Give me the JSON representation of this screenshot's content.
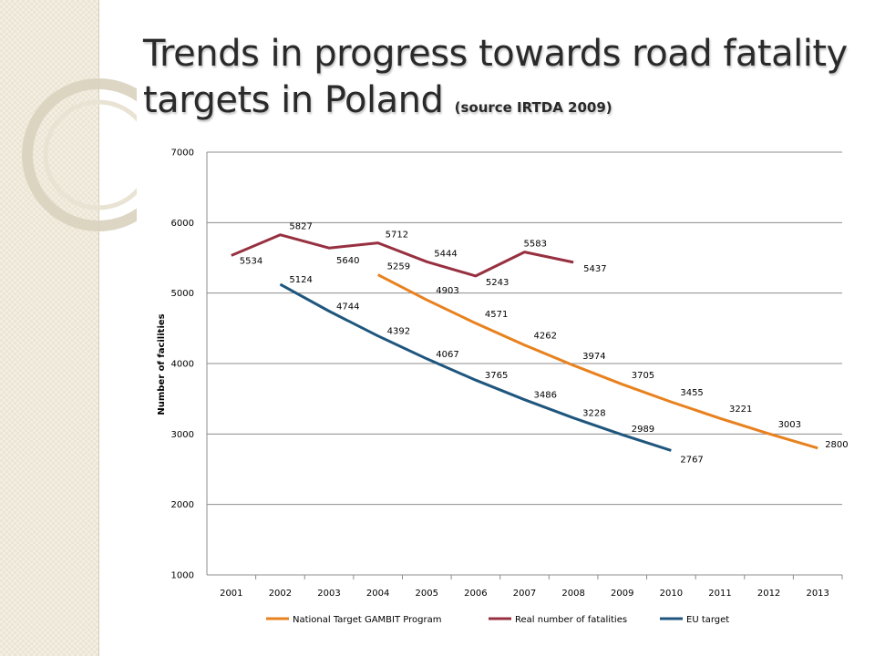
{
  "slide": {
    "title": "Trends in progress towards road fatality targets in Poland",
    "source": "(source IRTDA 2009)"
  },
  "colors": {
    "national": "#e8811e",
    "real": "#973040",
    "eu": "#1f567e",
    "grid": "#8c8c8c"
  },
  "chart_data": {
    "type": "line",
    "title": "",
    "xlabel": "",
    "ylabel": "Number of facilities",
    "categories": [
      "2001",
      "2002",
      "2003",
      "2004",
      "2005",
      "2006",
      "2007",
      "2008",
      "2009",
      "2010",
      "2011",
      "2012",
      "2013"
    ],
    "y_ticks": [
      "1000",
      "2000",
      "3000",
      "4000",
      "5000",
      "6000",
      "7000"
    ],
    "ylim": [
      1000,
      7000
    ],
    "grid": true,
    "legend_position": "bottom",
    "series": [
      {
        "name": "National Target GAMBIT Program",
        "color": "#e8811e",
        "x": [
          "2004",
          "2005",
          "2006",
          "2007",
          "2008",
          "2009",
          "2010",
          "2011",
          "2012",
          "2013"
        ],
        "values": [
          5259,
          4903,
          4571,
          4262,
          3974,
          3705,
          3455,
          3221,
          3003,
          2800
        ],
        "labels": [
          "5259",
          "4903",
          "4571",
          "4262",
          "3974",
          "3705",
          "3455",
          "3221",
          "3003",
          "2800"
        ]
      },
      {
        "name": "Real number of fatalities",
        "color": "#973040",
        "x": [
          "2001",
          "2002",
          "2003",
          "2004",
          "2005",
          "2006",
          "2007",
          "2008"
        ],
        "values": [
          5534,
          5827,
          5640,
          5712,
          5444,
          5243,
          5583,
          5437
        ],
        "labels": [
          "5534",
          "5827",
          "5640",
          "5712",
          "5444",
          "5243",
          "5583",
          "5437"
        ]
      },
      {
        "name": "EU target",
        "color": "#1f567e",
        "x": [
          "2002",
          "2003",
          "2004",
          "2005",
          "2006",
          "2007",
          "2008",
          "2009",
          "2010"
        ],
        "values": [
          5124,
          4744,
          4392,
          4067,
          3765,
          3486,
          3228,
          2989,
          2767
        ],
        "labels": [
          "5124",
          "4744",
          "4392",
          "4067",
          "3765",
          "3486",
          "3228",
          "2989",
          "2767"
        ]
      }
    ]
  }
}
